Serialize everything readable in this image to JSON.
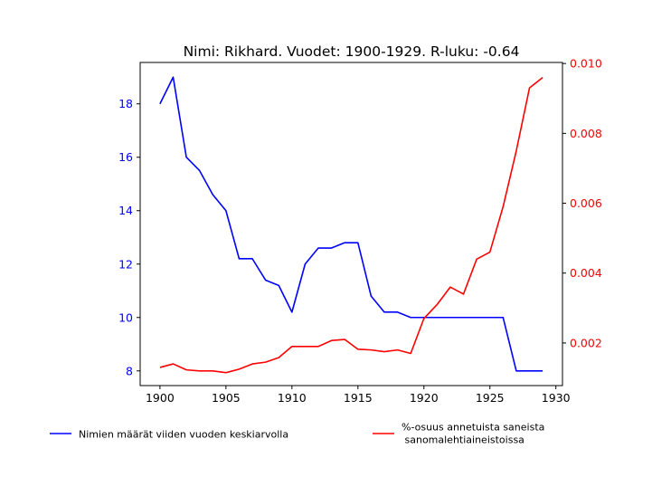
{
  "chart_data": {
    "type": "line",
    "title": "Nimi: Rikhard. Vuodet: 1900-1929. R-luku: -0.64",
    "x": [
      1900,
      1901,
      1902,
      1903,
      1904,
      1905,
      1906,
      1907,
      1908,
      1909,
      1910,
      1911,
      1912,
      1913,
      1914,
      1915,
      1916,
      1917,
      1918,
      1919,
      1920,
      1921,
      1922,
      1923,
      1924,
      1925,
      1926,
      1927,
      1928,
      1929
    ],
    "xlim": [
      1898.5,
      1930.5
    ],
    "x_ticks": [
      1900,
      1905,
      1910,
      1915,
      1920,
      1925,
      1930
    ],
    "y_left": {
      "lim": [
        7.45,
        19.55
      ],
      "ticks": [
        8,
        10,
        12,
        14,
        16,
        18
      ],
      "tick_labels": [
        "8",
        "10",
        "12",
        "14",
        "16",
        "18"
      ],
      "color": "#0000ff"
    },
    "y_right": {
      "lim": [
        0.00078,
        0.01003
      ],
      "ticks": [
        0.002,
        0.004,
        0.006,
        0.008,
        0.01
      ],
      "tick_labels": [
        "0.002",
        "0.004",
        "0.006",
        "0.008",
        "0.010"
      ],
      "color": "#ff0000"
    },
    "series": [
      {
        "name": "Nimien määrät viiden vuoden keskiarvolla",
        "axis": "left",
        "color": "#0000ff",
        "values": [
          18.0,
          19.0,
          16.0,
          15.5,
          14.6,
          14.0,
          12.2,
          12.2,
          11.4,
          11.2,
          10.2,
          12.0,
          12.6,
          12.6,
          12.8,
          12.8,
          10.8,
          10.2,
          10.2,
          10.0,
          10.0,
          10.0,
          10.0,
          10.0,
          10.0,
          10.0,
          10.0,
          8.0,
          8.0,
          8.0
        ]
      },
      {
        "name": "%-osuus annetuista saneista\n sanomalehtiaineistoissa",
        "axis": "right",
        "color": "#ff0000",
        "values": [
          0.0013,
          0.0014,
          0.00123,
          0.0012,
          0.0012,
          0.00115,
          0.00125,
          0.0014,
          0.00145,
          0.00158,
          0.0019,
          0.0019,
          0.0019,
          0.00207,
          0.0021,
          0.00182,
          0.0018,
          0.00175,
          0.0018,
          0.0017,
          0.0027,
          0.0031,
          0.0036,
          0.0034,
          0.0044,
          0.0046,
          0.0059,
          0.0075,
          0.0093,
          0.0096
        ]
      }
    ],
    "legend": {
      "placement": "bottom",
      "entries": [
        {
          "label": "Nimien määrät viiden vuoden keskiarvolla",
          "color": "#0000ff"
        },
        {
          "label_lines": [
            "%-osuus annetuista saneista",
            " sanomalehtiaineistoissa"
          ],
          "color": "#ff0000"
        }
      ]
    },
    "grid": false
  }
}
